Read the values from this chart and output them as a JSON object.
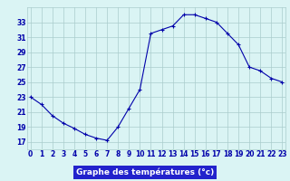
{
  "hours": [
    0,
    1,
    2,
    3,
    4,
    5,
    6,
    7,
    8,
    9,
    10,
    11,
    12,
    13,
    14,
    15,
    16,
    17,
    18,
    19,
    20,
    21,
    22,
    23
  ],
  "temps": [
    23.0,
    22.0,
    20.5,
    19.5,
    18.8,
    18.0,
    17.5,
    17.2,
    19.0,
    21.5,
    24.0,
    31.5,
    32.0,
    32.5,
    34.0,
    34.0,
    33.5,
    33.0,
    31.5,
    30.0,
    27.0,
    26.5,
    25.5,
    25.0
  ],
  "line_color": "#0000aa",
  "marker": "+",
  "marker_size": 3,
  "bg_color": "#daf4f4",
  "grid_color": "#aacccc",
  "xlabel": "Graphe des températures (°c)",
  "xlabel_bg": "#2222cc",
  "xlabel_color": "#ffffff",
  "ylim": [
    16.0,
    35.0
  ],
  "yticks": [
    17,
    19,
    21,
    23,
    25,
    27,
    29,
    31,
    33
  ],
  "xlim": [
    -0.3,
    23.3
  ],
  "xticks": [
    0,
    1,
    2,
    3,
    4,
    5,
    6,
    7,
    8,
    9,
    10,
    11,
    12,
    13,
    14,
    15,
    16,
    17,
    18,
    19,
    20,
    21,
    22,
    23
  ],
  "tick_fontsize": 5.5,
  "label_fontsize": 6.5,
  "linewidth": 0.8
}
